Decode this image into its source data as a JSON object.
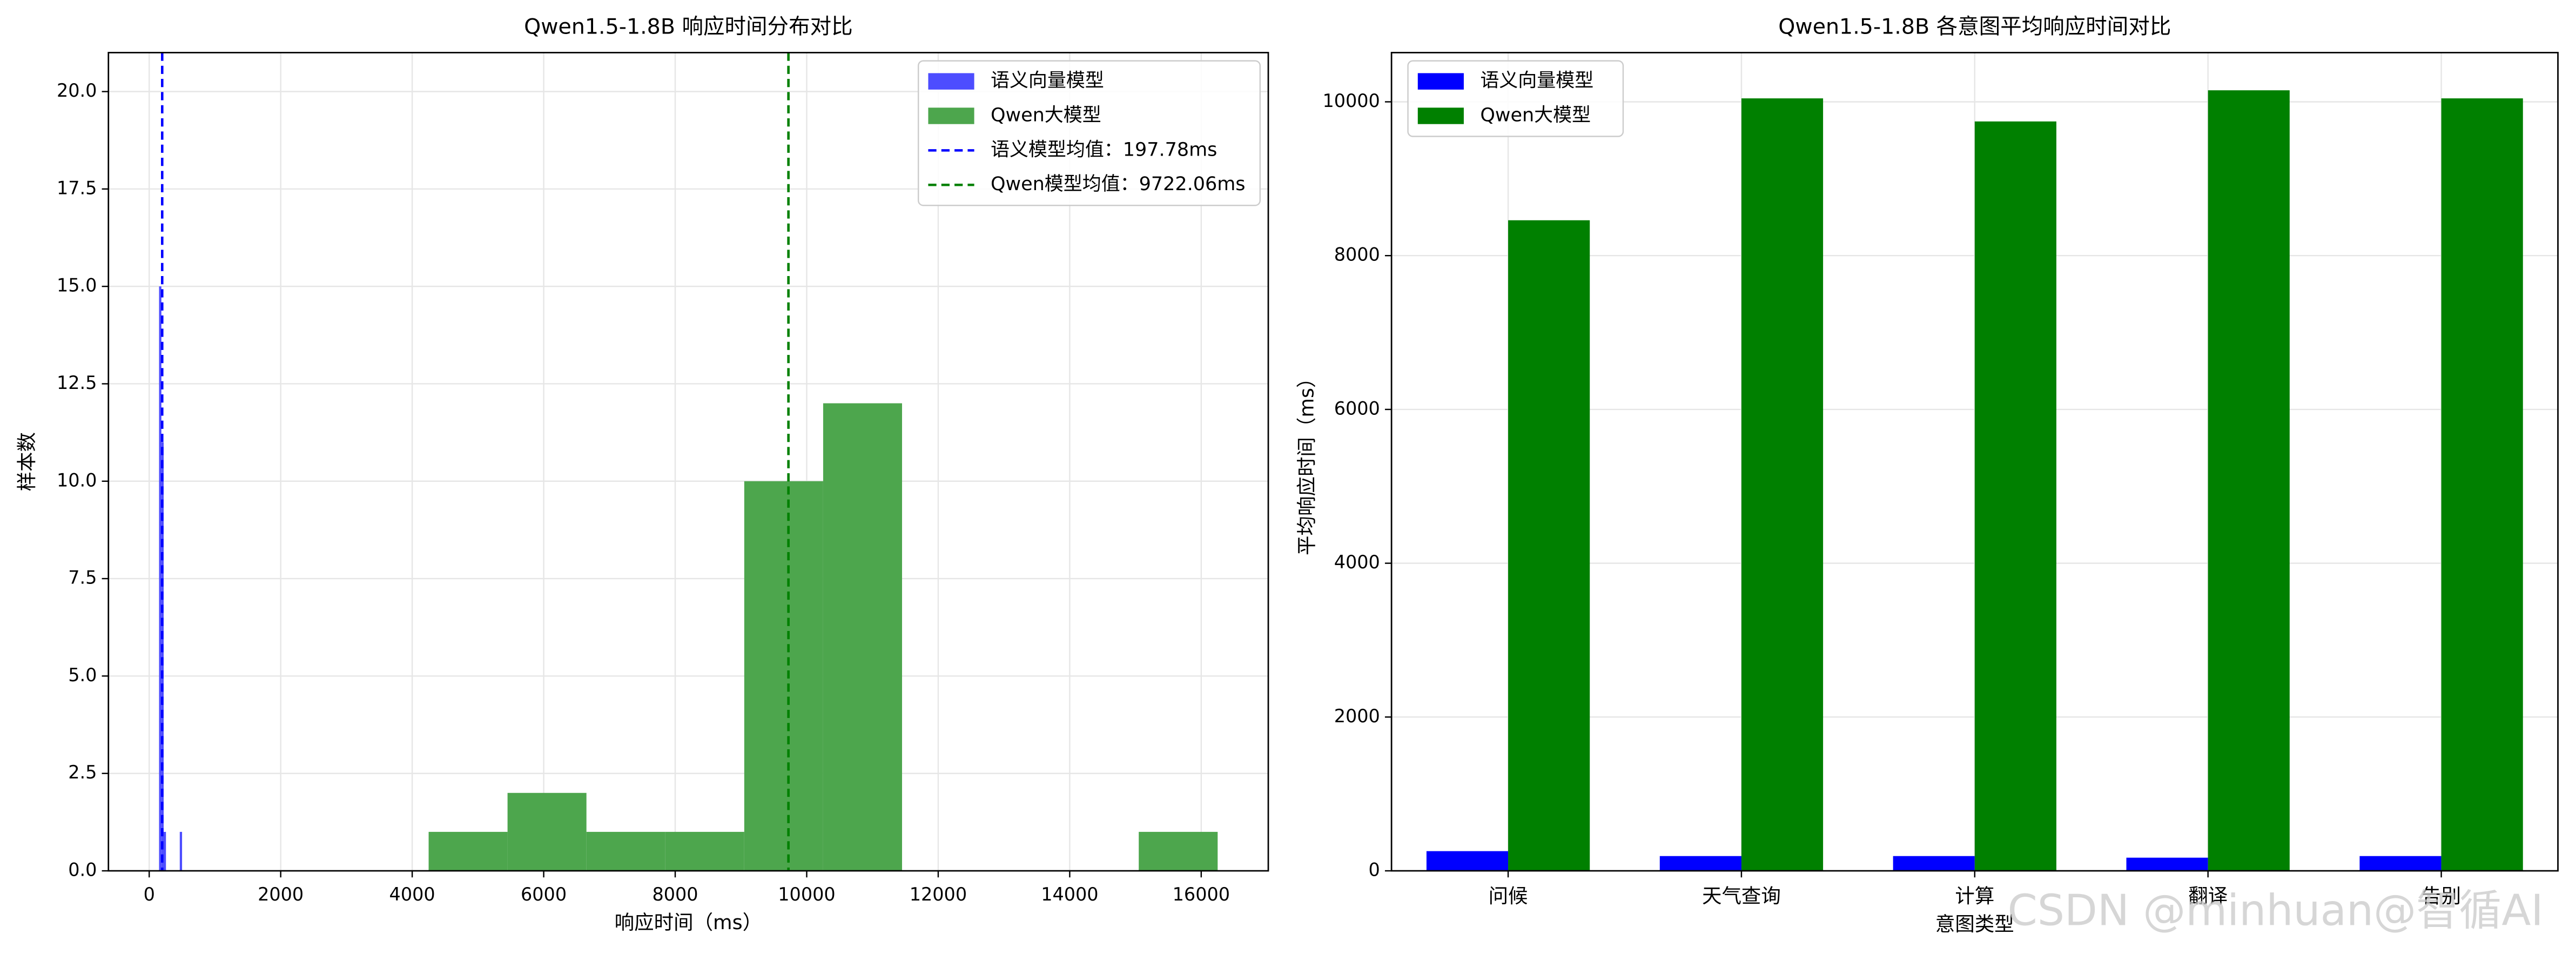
{
  "chart_data": [
    {
      "type": "histogram",
      "title": "Qwen1.5-1.8B 响应时间分布对比",
      "xlabel": "响应时间（ms）",
      "ylabel": "样本数",
      "series": [
        {
          "name": "语义向量模型",
          "color": "#4d4dff",
          "bins": [
            150,
            185,
            220,
            255,
            290,
            325,
            360,
            395,
            430,
            465,
            500
          ],
          "values": [
            15,
            11,
            1,
            0,
            0,
            0,
            0,
            0,
            0,
            1
          ]
        },
        {
          "name": "Qwen大模型",
          "color": "#4da64d",
          "bins": [
            4250,
            5450,
            6650,
            7850,
            9050,
            10250,
            11450,
            12650,
            13850,
            15050,
            16250
          ],
          "values": [
            1,
            2,
            1,
            1,
            10,
            12,
            0,
            0,
            0,
            1
          ]
        }
      ],
      "vlines": [
        {
          "value": 197.78,
          "label": "语义模型均值：197.78ms",
          "color": "#0000ff"
        },
        {
          "value": 9722.06,
          "label": "Qwen模型均值：9722.06ms",
          "color": "#008000"
        }
      ],
      "xlim": [
        -620,
        17020
      ],
      "xticks": [
        0,
        2000,
        4000,
        6000,
        8000,
        10000,
        12000,
        14000,
        16000
      ],
      "ylim": [
        0,
        21
      ],
      "yticks": [
        {
          "value": 0,
          "label": "0.0"
        },
        2.5,
        {
          "value": 5,
          "label": "5.0"
        },
        7.5,
        {
          "value": 10,
          "label": "10.0"
        },
        12.5,
        {
          "value": 15,
          "label": "15.0"
        },
        17.5,
        {
          "value": 20,
          "label": "20.0"
        }
      ],
      "grid": true,
      "legend": "upper-right"
    },
    {
      "type": "bar",
      "title": "Qwen1.5-1.8B 各意图平均响应时间对比",
      "xlabel": "意图类型",
      "ylabel": "平均响应时间（ms）",
      "categories": [
        "问候",
        "天气查询",
        "计算",
        "翻译",
        "告别"
      ],
      "series": [
        {
          "name": "语义向量模型",
          "color": "#0000ff",
          "values": [
            256,
            192,
            192,
            171,
            192
          ]
        },
        {
          "name": "Qwen大模型",
          "color": "#008000",
          "values": [
            8460,
            10045,
            9745,
            10150,
            10045
          ]
        }
      ],
      "ylim": [
        0,
        10640
      ],
      "yticks": [
        0,
        2000,
        4000,
        6000,
        8000,
        10000
      ],
      "grid": true,
      "legend": "upper-left"
    }
  ],
  "watermark": "CSDN @minhuan@智循AI"
}
